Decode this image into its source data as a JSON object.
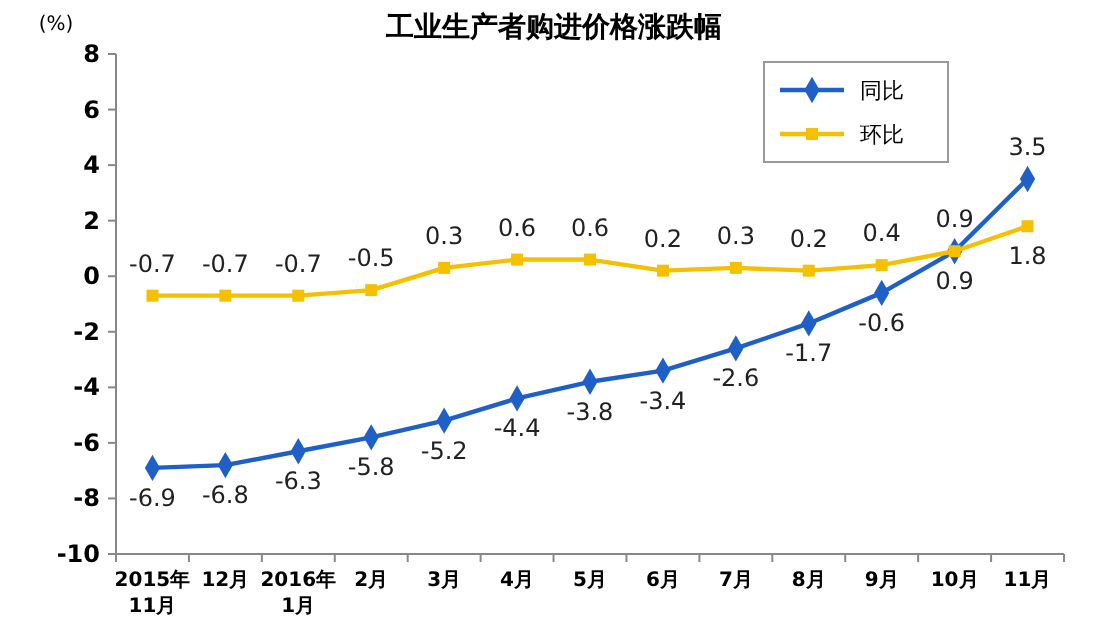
{
  "chart_data": {
    "type": "line",
    "title": "工业生产者购进价格涨跌幅",
    "ylabel": "(%)",
    "categories": [
      "2015年\n11月",
      "12月",
      "2016年\n1月",
      "2月",
      "3月",
      "4月",
      "5月",
      "6月",
      "7月",
      "8月",
      "9月",
      "10月",
      "11月"
    ],
    "series": [
      {
        "name": "同比",
        "color": "#1f5fc8",
        "marker": "diamond",
        "values": [
          -6.9,
          -6.8,
          -6.3,
          -5.8,
          -5.2,
          -4.4,
          -3.8,
          -3.4,
          -2.6,
          -1.7,
          -0.6,
          0.9,
          3.5
        ]
      },
      {
        "name": "环比",
        "color": "#f5c000",
        "marker": "square",
        "values": [
          -0.7,
          -0.7,
          -0.7,
          -0.5,
          0.3,
          0.6,
          0.6,
          0.2,
          0.3,
          0.2,
          0.4,
          0.9,
          1.8
        ]
      }
    ],
    "ylim": [
      -10,
      8
    ],
    "yticks": [
      -10,
      -8,
      -6,
      -4,
      -2,
      0,
      2,
      4,
      6,
      8
    ],
    "grid": false,
    "legend": "top right",
    "data_labels": true,
    "line_style": "solid"
  }
}
